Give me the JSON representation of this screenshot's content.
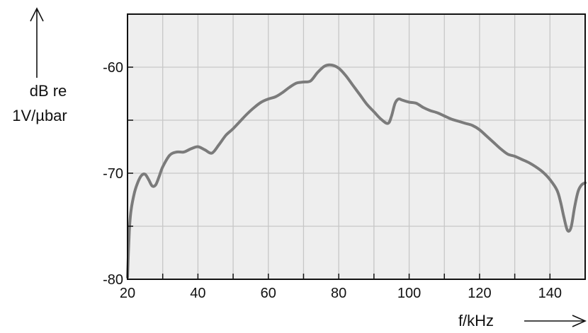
{
  "chart_data": {
    "type": "line",
    "xlabel": "f/kHz",
    "ylabel_lines": [
      "dB re",
      "1V/µbar"
    ],
    "xlim": [
      20,
      150
    ],
    "ylim": [
      -80,
      -55
    ],
    "x_ticks": [
      20,
      40,
      60,
      80,
      100,
      120,
      140
    ],
    "y_ticks": [
      -60,
      -70,
      -80
    ],
    "grid": true,
    "legend": "none",
    "colors": {
      "plot_bg": "#eeeeee",
      "grid": "#c7c7c7",
      "line": "#7b7b7b",
      "frame": "#111111"
    },
    "series": [
      {
        "x": [
          20,
          20.5,
          21,
          22,
          23,
          24,
          25,
          26,
          27,
          28,
          29,
          30,
          32,
          34,
          36,
          38,
          40,
          42,
          44,
          46,
          48,
          50,
          52,
          54,
          56,
          58,
          60,
          62,
          64,
          66,
          68,
          70,
          72,
          74,
          76,
          78,
          80,
          82,
          84,
          86,
          88,
          90,
          92,
          94,
          95,
          96,
          97,
          98,
          100,
          102,
          104,
          106,
          108,
          110,
          112,
          114,
          116,
          118,
          120,
          122,
          124,
          126,
          128,
          130,
          132,
          134,
          136,
          138,
          140,
          142,
          143,
          144,
          145,
          146,
          147,
          148,
          149,
          150
        ],
        "y": [
          -79.8,
          -75.5,
          -73.5,
          -71.8,
          -70.8,
          -70.2,
          -70.1,
          -70.6,
          -71.2,
          -71.1,
          -70.3,
          -69.4,
          -68.3,
          -68.0,
          -68.0,
          -67.7,
          -67.5,
          -67.8,
          -68.1,
          -67.3,
          -66.4,
          -65.8,
          -65.1,
          -64.4,
          -63.8,
          -63.3,
          -63.0,
          -62.8,
          -62.4,
          -61.9,
          -61.5,
          -61.4,
          -61.3,
          -60.5,
          -59.9,
          -59.8,
          -60.1,
          -60.8,
          -61.7,
          -62.6,
          -63.5,
          -64.2,
          -64.9,
          -65.3,
          -64.6,
          -63.4,
          -63.0,
          -63.1,
          -63.3,
          -63.4,
          -63.8,
          -64.1,
          -64.3,
          -64.6,
          -64.9,
          -65.1,
          -65.3,
          -65.5,
          -65.9,
          -66.5,
          -67.1,
          -67.7,
          -68.2,
          -68.4,
          -68.7,
          -69.0,
          -69.4,
          -69.9,
          -70.6,
          -71.6,
          -72.7,
          -74.2,
          -75.4,
          -75.1,
          -73.2,
          -71.7,
          -71.1,
          -70.9
        ]
      }
    ]
  }
}
